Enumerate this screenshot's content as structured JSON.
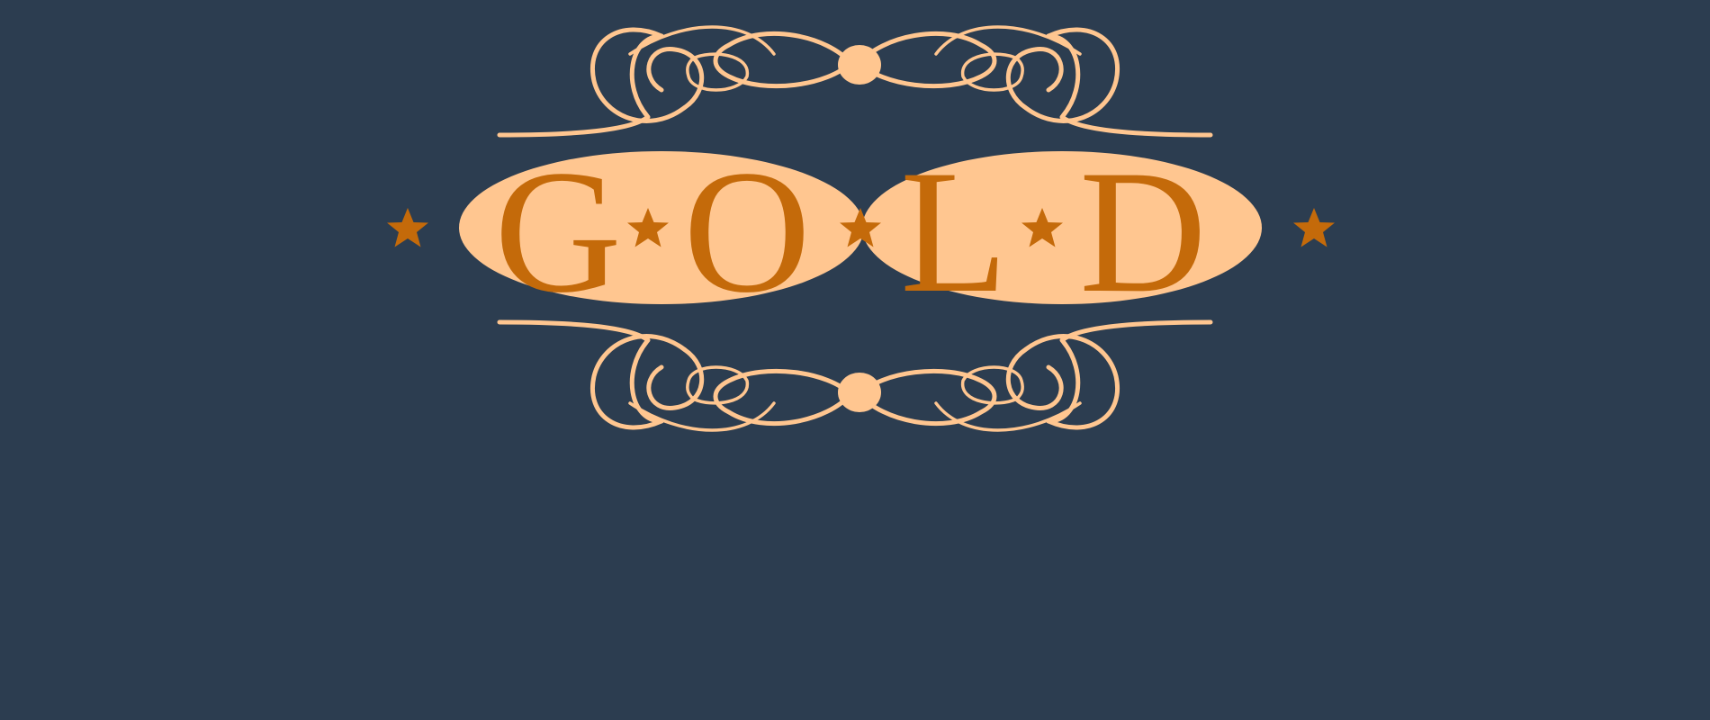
{
  "logo": {
    "word": "GOLD",
    "letters": [
      "G",
      "O",
      "L",
      "D"
    ],
    "colors": {
      "background": "#2c3d50",
      "ornament": "#ffc690",
      "lettering": "#c46a0a",
      "stars": "#c46a0a"
    },
    "icons": {
      "stars": "star-icon",
      "flourish": "scroll-flourish-ornament"
    }
  }
}
